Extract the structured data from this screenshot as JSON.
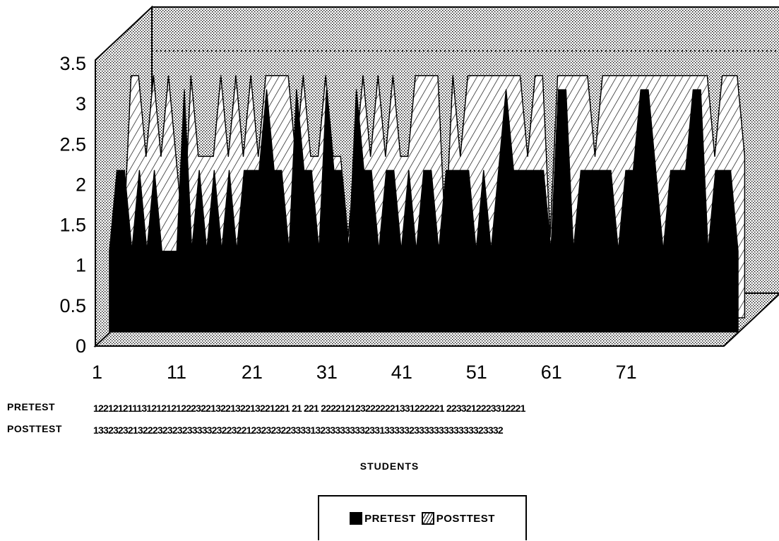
{
  "chart_data": {
    "type": "area",
    "title": "",
    "xlabel": "STUDENTS",
    "ylabel": "",
    "ylim": [
      0,
      3.5
    ],
    "y_ticks": [
      "0",
      "0.5",
      "1",
      "1.5",
      "2",
      "2.5",
      "3",
      "3.5"
    ],
    "x_ticks": [
      "1",
      "11",
      "21",
      "31",
      "41",
      "51",
      "61",
      "71"
    ],
    "three_d": true,
    "legend_position": "bottom",
    "series": [
      {
        "name": "PRETEST",
        "color": "#000000",
        "fill": "solid",
        "row_text": "1221212111312121212223221322132213221221 21 221 2222121232222221331222221 2233212223312221",
        "values": [
          1,
          2,
          2,
          1,
          2,
          1,
          2,
          1,
          1,
          1,
          3,
          1,
          2,
          1,
          2,
          1,
          2,
          1,
          2,
          2,
          2,
          3,
          2,
          2,
          1,
          3,
          2,
          2,
          1,
          3,
          2,
          2,
          1,
          3,
          2,
          2,
          1,
          2,
          2,
          1,
          2,
          1,
          2,
          2,
          1,
          2,
          2,
          2,
          2,
          1,
          2,
          1,
          2,
          3,
          2,
          2,
          2,
          2,
          2,
          1,
          3,
          3,
          1,
          2,
          2,
          2,
          2,
          2,
          1,
          2,
          2,
          3,
          3,
          2,
          1,
          2,
          2,
          2,
          3,
          3,
          1,
          2,
          2,
          2,
          1
        ]
      },
      {
        "name": "POSTTEST",
        "color": "#ffffff",
        "fill": "hatched",
        "row_text": "13323232132223232323333323223221232323223333132333333332331333332333333333333323332",
        "values": [
          1,
          3,
          3,
          2,
          3,
          2,
          3,
          2,
          1,
          3,
          2,
          2,
          2,
          3,
          2,
          3,
          2,
          3,
          2,
          3,
          3,
          3,
          3,
          2,
          3,
          2,
          2,
          3,
          2,
          2,
          1,
          2,
          3,
          2,
          3,
          2,
          3,
          2,
          2,
          3,
          3,
          3,
          3,
          1,
          3,
          2,
          3,
          3,
          3,
          3,
          3,
          3,
          3,
          3,
          2,
          3,
          3,
          1,
          3,
          3,
          3,
          3,
          3,
          2,
          3,
          3,
          3,
          3,
          3,
          3,
          3,
          3,
          3,
          3,
          3,
          3,
          3,
          3,
          3,
          2,
          3,
          3,
          3,
          2
        ]
      }
    ]
  },
  "legend": {
    "pretest_label": "PRETEST",
    "posttest_label": "POSTTEST"
  }
}
